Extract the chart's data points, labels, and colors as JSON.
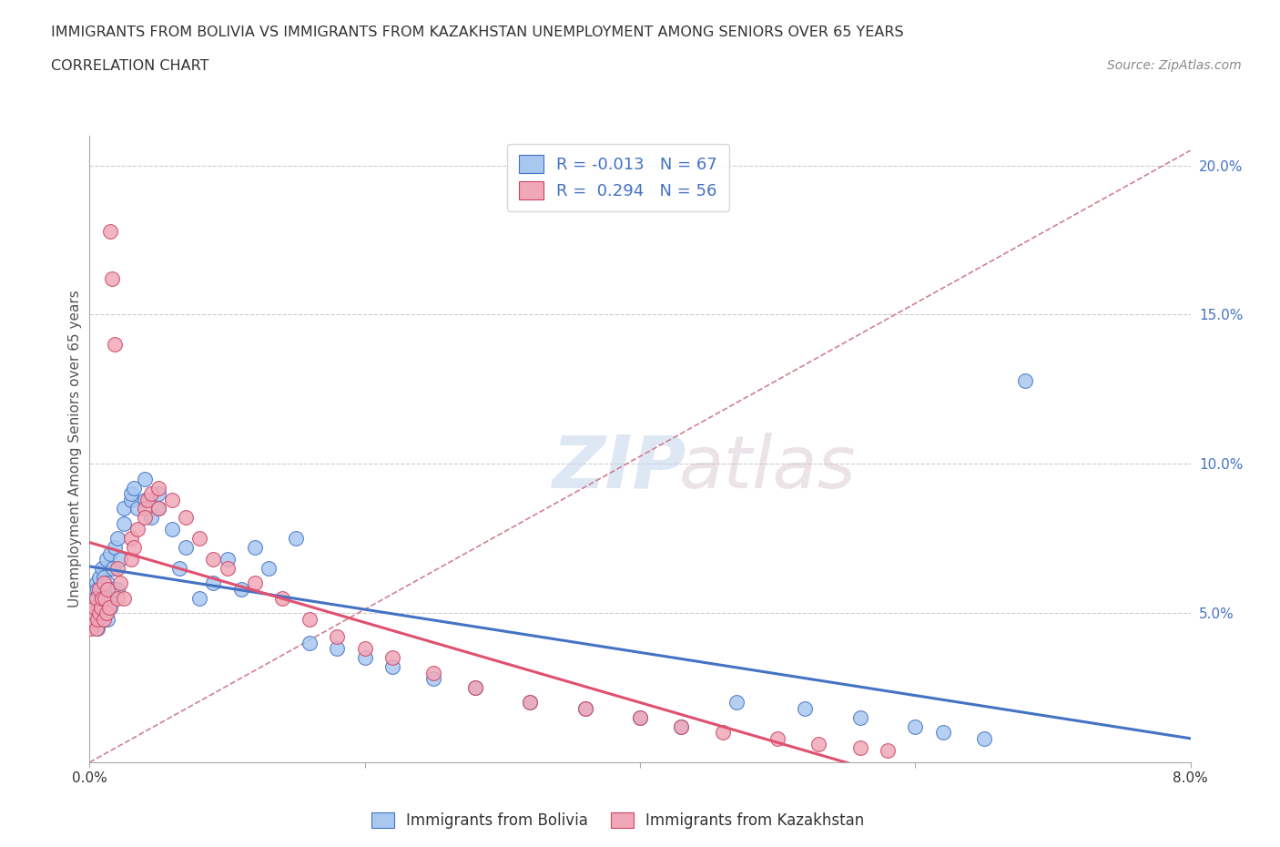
{
  "title_line1": "IMMIGRANTS FROM BOLIVIA VS IMMIGRANTS FROM KAZAKHSTAN UNEMPLOYMENT AMONG SENIORS OVER 65 YEARS",
  "title_line2": "CORRELATION CHART",
  "source": "Source: ZipAtlas.com",
  "ylabel": "Unemployment Among Seniors over 65 years",
  "legend_label1": "Immigrants from Bolivia",
  "legend_label2": "Immigrants from Kazakhstan",
  "R1": -0.013,
  "N1": 67,
  "R2": 0.294,
  "N2": 56,
  "xlim": [
    0.0,
    0.08
  ],
  "ylim": [
    0.0,
    0.21
  ],
  "y_ticks_right": [
    0.05,
    0.1,
    0.15,
    0.2
  ],
  "y_tick_labels_right": [
    "5.0%",
    "10.0%",
    "15.0%",
    "20.0%"
  ],
  "color_bolivia": "#a8c8f0",
  "color_bolivia_edge": "#4472c4",
  "color_kazakhstan": "#f0a8b8",
  "color_kazakhstan_edge": "#cc4466",
  "color_bolivia_line": "#4472c4",
  "color_kazakhstan_line": "#e05070",
  "color_diagonal": "#d0a0a8",
  "color_text_stat": "#4472c4",
  "bolivia_x": [
    0.0002,
    0.0003,
    0.0004,
    0.0005,
    0.0005,
    0.0006,
    0.0006,
    0.0007,
    0.0007,
    0.0008,
    0.0008,
    0.0009,
    0.001,
    0.001,
    0.001,
    0.0011,
    0.0012,
    0.0012,
    0.0013,
    0.0013,
    0.0014,
    0.0015,
    0.0015,
    0.0016,
    0.0017,
    0.0018,
    0.002,
    0.002,
    0.0022,
    0.0025,
    0.0025,
    0.003,
    0.003,
    0.0032,
    0.0035,
    0.004,
    0.004,
    0.0045,
    0.005,
    0.005,
    0.006,
    0.0065,
    0.007,
    0.008,
    0.009,
    0.01,
    0.011,
    0.012,
    0.013,
    0.015,
    0.016,
    0.018,
    0.02,
    0.022,
    0.025,
    0.028,
    0.032,
    0.036,
    0.04,
    0.043,
    0.047,
    0.052,
    0.056,
    0.06,
    0.062,
    0.065,
    0.068
  ],
  "bolivia_y": [
    0.052,
    0.048,
    0.055,
    0.05,
    0.06,
    0.045,
    0.058,
    0.052,
    0.062,
    0.055,
    0.048,
    0.065,
    0.05,
    0.058,
    0.062,
    0.055,
    0.052,
    0.068,
    0.06,
    0.048,
    0.055,
    0.052,
    0.07,
    0.058,
    0.065,
    0.072,
    0.058,
    0.075,
    0.068,
    0.08,
    0.085,
    0.088,
    0.09,
    0.092,
    0.085,
    0.095,
    0.088,
    0.082,
    0.085,
    0.09,
    0.078,
    0.065,
    0.072,
    0.055,
    0.06,
    0.068,
    0.058,
    0.072,
    0.065,
    0.075,
    0.04,
    0.038,
    0.035,
    0.032,
    0.028,
    0.025,
    0.02,
    0.018,
    0.015,
    0.012,
    0.02,
    0.018,
    0.015,
    0.012,
    0.01,
    0.008,
    0.128
  ],
  "kazakhstan_x": [
    0.0001,
    0.0002,
    0.0003,
    0.0004,
    0.0005,
    0.0005,
    0.0006,
    0.0007,
    0.0007,
    0.0008,
    0.0009,
    0.001,
    0.001,
    0.0011,
    0.0012,
    0.0013,
    0.0014,
    0.0015,
    0.0016,
    0.0018,
    0.002,
    0.002,
    0.0022,
    0.0025,
    0.003,
    0.003,
    0.0032,
    0.0035,
    0.004,
    0.004,
    0.0042,
    0.0045,
    0.005,
    0.005,
    0.006,
    0.007,
    0.008,
    0.009,
    0.01,
    0.012,
    0.014,
    0.016,
    0.018,
    0.02,
    0.022,
    0.025,
    0.028,
    0.032,
    0.036,
    0.04,
    0.043,
    0.046,
    0.05,
    0.053,
    0.056,
    0.058
  ],
  "kazakhstan_y": [
    0.045,
    0.048,
    0.05,
    0.052,
    0.045,
    0.055,
    0.048,
    0.05,
    0.058,
    0.052,
    0.055,
    0.048,
    0.06,
    0.055,
    0.05,
    0.058,
    0.052,
    0.178,
    0.162,
    0.14,
    0.055,
    0.065,
    0.06,
    0.055,
    0.068,
    0.075,
    0.072,
    0.078,
    0.085,
    0.082,
    0.088,
    0.09,
    0.085,
    0.092,
    0.088,
    0.082,
    0.075,
    0.068,
    0.065,
    0.06,
    0.055,
    0.048,
    0.042,
    0.038,
    0.035,
    0.03,
    0.025,
    0.02,
    0.018,
    0.015,
    0.012,
    0.01,
    0.008,
    0.006,
    0.005,
    0.004
  ]
}
